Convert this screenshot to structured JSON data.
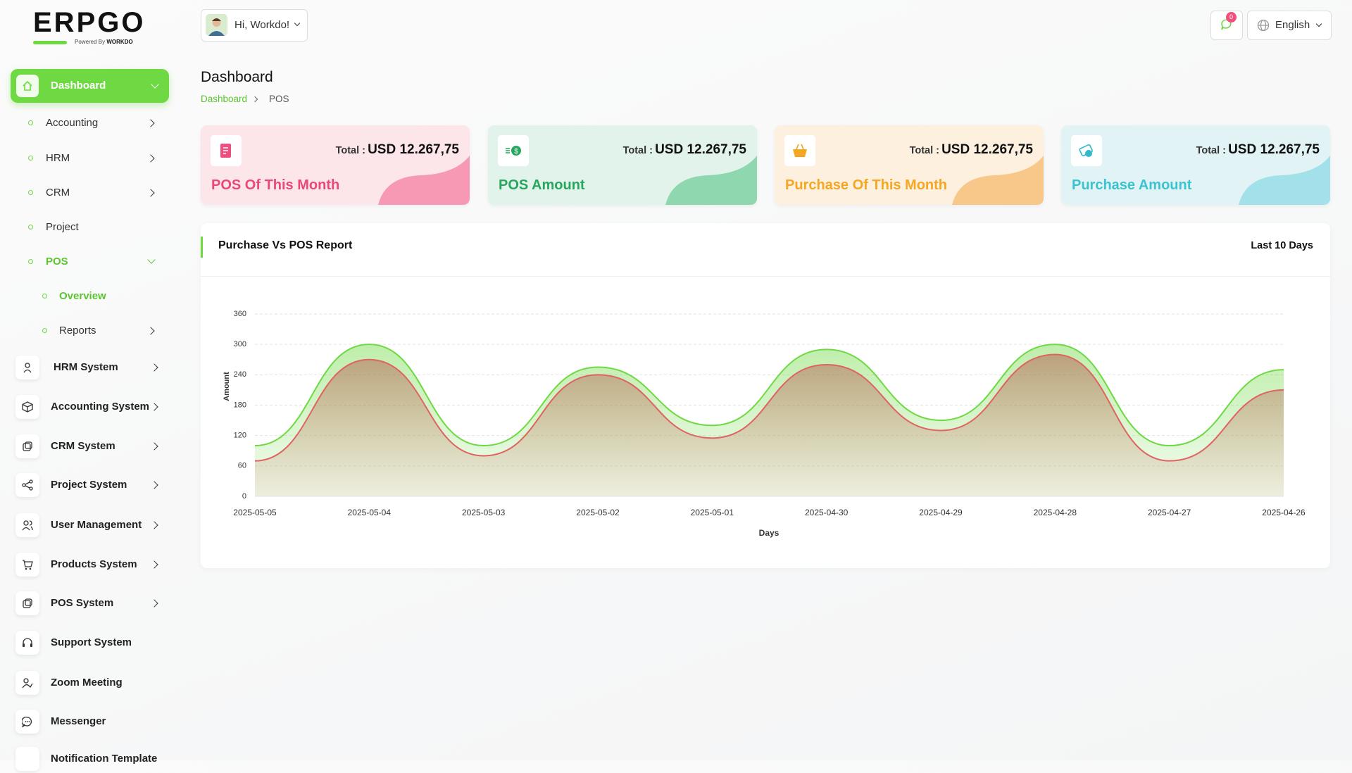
{
  "sidebar": {
    "logo": "ERPGO",
    "powered": "Powered By",
    "brand": "WORKDO",
    "items": [
      "Dashboard",
      "Accounting",
      "HRM",
      "CRM",
      "Project",
      "POS",
      "Overview",
      "Reports",
      "HRM System",
      "Accounting System",
      "CRM System",
      "Project System",
      "User Management",
      "Products System",
      "POS System",
      "Support System",
      "Zoom Meeting",
      "Messenger",
      "Notification Template"
    ]
  },
  "header": {
    "greeting": "Hi, Workdo!",
    "notifications": 0,
    "language": "English"
  },
  "page": {
    "title": "Dashboard",
    "breadcrumb": [
      "Dashboard",
      "POS"
    ]
  },
  "cards": [
    {
      "label": "Total :",
      "amount": "USD 12.267,75",
      "title": "POS Of This Month"
    },
    {
      "label": "Total :",
      "amount": "USD 12.267,75",
      "title": "POS Amount"
    },
    {
      "label": "Total :",
      "amount": "USD 12.267,75",
      "title": "Purchase Of This Month"
    },
    {
      "label": "Total :",
      "amount": "USD 12.267,75",
      "title": "Purchase Amount"
    }
  ],
  "chart_data": {
    "type": "area",
    "title": "Purchase Vs POS Report",
    "period": "Last 10 Days",
    "xlabel": "Days",
    "ylabel": "Amount",
    "categories": [
      "2025-05-05",
      "2025-05-04",
      "2025-05-03",
      "2025-05-02",
      "2025-05-01",
      "2025-04-30",
      "2025-04-29",
      "2025-04-28",
      "2025-04-27",
      "2025-04-26"
    ],
    "series": [
      {
        "color": "#6fd943",
        "values": [
          100,
          300,
          100,
          255,
          140,
          290,
          150,
          300,
          100,
          250
        ]
      },
      {
        "color": "#e06262",
        "values": [
          70,
          270,
          80,
          240,
          115,
          260,
          130,
          280,
          70,
          210
        ]
      }
    ],
    "ylim": [
      0,
      360
    ],
    "yticks": [
      0,
      60,
      120,
      180,
      240,
      300,
      360
    ],
    "grid": true
  }
}
